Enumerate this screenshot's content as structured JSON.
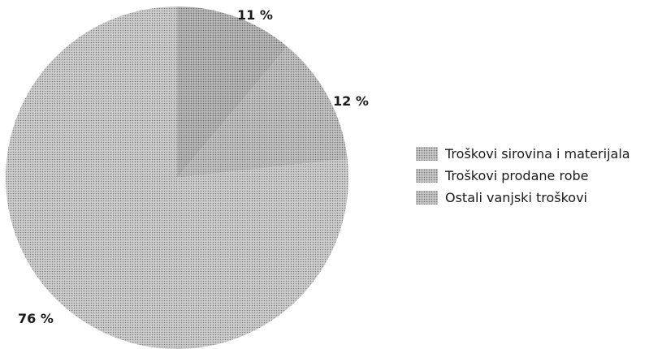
{
  "chart_data": {
    "type": "pie",
    "categories": [
      "Troškovi sirovina i materijala",
      "Troškovi prodane robe",
      "Ostali vanjski troškovi"
    ],
    "values": [
      76,
      11,
      12
    ],
    "labels": [
      "76 %",
      "11 %",
      "12 %"
    ],
    "legend_placement": "right",
    "colors": [
      "#bdbdbd",
      "#a9a9a9",
      "#b5b5b5"
    ]
  }
}
